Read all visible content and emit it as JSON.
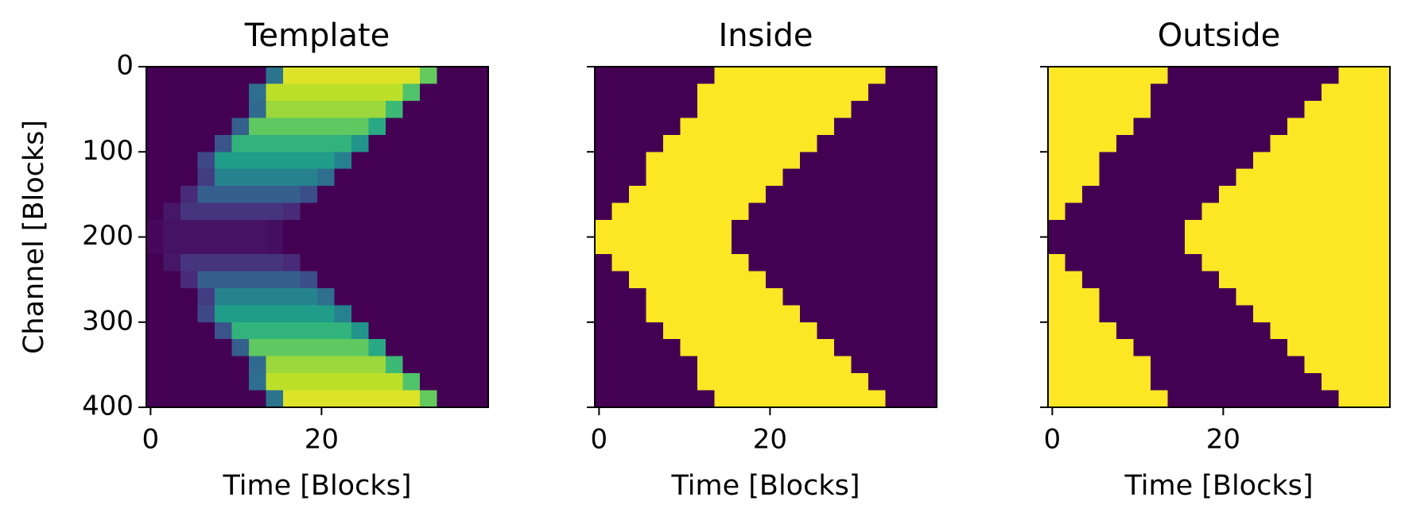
{
  "chart_data": [
    {
      "type": "heatmap",
      "title": "Template",
      "xlabel": "Time [Blocks]",
      "ylabel": "Channel [Blocks]",
      "xlim": [
        -0.5,
        39.5
      ],
      "ylim": [
        400,
        0
      ],
      "xticks": [
        0,
        20
      ],
      "yticks": [
        0,
        100,
        200,
        300,
        400
      ],
      "ytick_labels": true,
      "cmap": "viridis",
      "clim": [
        0,
        1
      ],
      "z": [
        [
          0,
          0,
          0,
          0,
          0,
          0,
          0,
          0.38,
          0.95,
          0.95,
          0.95,
          0.95,
          0.95,
          0.95,
          0.95,
          0.95,
          0.76,
          0,
          0,
          0
        ],
        [
          0,
          0,
          0,
          0,
          0,
          0,
          0.36,
          0.9,
          0.9,
          0.9,
          0.9,
          0.9,
          0.9,
          0.9,
          0.9,
          0.72,
          0,
          0,
          0,
          0
        ],
        [
          0,
          0,
          0,
          0,
          0,
          0,
          0.34,
          0.85,
          0.85,
          0.85,
          0.85,
          0.85,
          0.85,
          0.85,
          0.68,
          0,
          0,
          0,
          0,
          0
        ],
        [
          0,
          0,
          0,
          0,
          0,
          0.3,
          0.75,
          0.75,
          0.75,
          0.75,
          0.75,
          0.75,
          0.75,
          0.6,
          0,
          0,
          0,
          0,
          0,
          0
        ],
        [
          0,
          0,
          0,
          0,
          0.26,
          0.65,
          0.65,
          0.65,
          0.65,
          0.65,
          0.65,
          0.65,
          0.52,
          0,
          0,
          0,
          0,
          0,
          0,
          0
        ],
        [
          0,
          0,
          0,
          0.22,
          0.55,
          0.55,
          0.55,
          0.55,
          0.55,
          0.55,
          0.55,
          0.44,
          0,
          0,
          0,
          0,
          0,
          0,
          0,
          0
        ],
        [
          0,
          0,
          0,
          0.18,
          0.45,
          0.45,
          0.45,
          0.45,
          0.45,
          0.45,
          0.36,
          0,
          0,
          0,
          0,
          0,
          0,
          0,
          0,
          0
        ],
        [
          0,
          0,
          0.12,
          0.3,
          0.3,
          0.3,
          0.3,
          0.3,
          0.3,
          0.24,
          0,
          0,
          0,
          0,
          0,
          0,
          0,
          0,
          0,
          0
        ],
        [
          0,
          0.06,
          0.15,
          0.15,
          0.15,
          0.15,
          0.15,
          0.15,
          0.12,
          0,
          0,
          0,
          0,
          0,
          0,
          0,
          0,
          0,
          0,
          0
        ],
        [
          0.02,
          0.05,
          0.05,
          0.05,
          0.05,
          0.05,
          0.05,
          0.04,
          0,
          0,
          0,
          0,
          0,
          0,
          0,
          0,
          0,
          0,
          0,
          0
        ],
        [
          0.02,
          0.05,
          0.05,
          0.05,
          0.05,
          0.05,
          0.05,
          0.04,
          0,
          0,
          0,
          0,
          0,
          0,
          0,
          0,
          0,
          0,
          0,
          0
        ],
        [
          0,
          0.06,
          0.15,
          0.15,
          0.15,
          0.15,
          0.15,
          0.15,
          0.12,
          0,
          0,
          0,
          0,
          0,
          0,
          0,
          0,
          0,
          0,
          0
        ],
        [
          0,
          0,
          0.12,
          0.3,
          0.3,
          0.3,
          0.3,
          0.3,
          0.3,
          0.24,
          0,
          0,
          0,
          0,
          0,
          0,
          0,
          0,
          0,
          0
        ],
        [
          0,
          0,
          0,
          0.18,
          0.45,
          0.45,
          0.45,
          0.45,
          0.45,
          0.45,
          0.36,
          0,
          0,
          0,
          0,
          0,
          0,
          0,
          0,
          0
        ],
        [
          0,
          0,
          0,
          0.22,
          0.55,
          0.55,
          0.55,
          0.55,
          0.55,
          0.55,
          0.55,
          0.44,
          0,
          0,
          0,
          0,
          0,
          0,
          0,
          0
        ],
        [
          0,
          0,
          0,
          0,
          0.26,
          0.65,
          0.65,
          0.65,
          0.65,
          0.65,
          0.65,
          0.65,
          0.52,
          0,
          0,
          0,
          0,
          0,
          0,
          0
        ],
        [
          0,
          0,
          0,
          0,
          0,
          0.3,
          0.75,
          0.75,
          0.75,
          0.75,
          0.75,
          0.75,
          0.75,
          0.6,
          0,
          0,
          0,
          0,
          0,
          0
        ],
        [
          0,
          0,
          0,
          0,
          0,
          0,
          0.34,
          0.85,
          0.85,
          0.85,
          0.85,
          0.85,
          0.85,
          0.85,
          0.68,
          0,
          0,
          0,
          0,
          0
        ],
        [
          0,
          0,
          0,
          0,
          0,
          0,
          0.36,
          0.9,
          0.9,
          0.9,
          0.9,
          0.9,
          0.9,
          0.9,
          0.9,
          0.72,
          0,
          0,
          0,
          0
        ],
        [
          0,
          0,
          0,
          0,
          0,
          0,
          0,
          0.38,
          0.95,
          0.95,
          0.95,
          0.95,
          0.95,
          0.95,
          0.95,
          0.95,
          0.76,
          0,
          0,
          0
        ]
      ]
    },
    {
      "type": "heatmap",
      "title": "Inside",
      "xlabel": "Time [Blocks]",
      "xlim": [
        -0.5,
        39.5
      ],
      "ylim": [
        400,
        0
      ],
      "xticks": [
        0,
        20
      ],
      "yticks": [
        0,
        100,
        200,
        300,
        400
      ],
      "ytick_labels": false,
      "cmap": "viridis",
      "clim": [
        0,
        1
      ],
      "z": [
        [
          0,
          0,
          0,
          0,
          0,
          0,
          0,
          1,
          1,
          1,
          1,
          1,
          1,
          1,
          1,
          1,
          1,
          0,
          0,
          0
        ],
        [
          0,
          0,
          0,
          0,
          0,
          0,
          1,
          1,
          1,
          1,
          1,
          1,
          1,
          1,
          1,
          1,
          0,
          0,
          0,
          0
        ],
        [
          0,
          0,
          0,
          0,
          0,
          0,
          1,
          1,
          1,
          1,
          1,
          1,
          1,
          1,
          1,
          0,
          0,
          0,
          0,
          0
        ],
        [
          0,
          0,
          0,
          0,
          0,
          1,
          1,
          1,
          1,
          1,
          1,
          1,
          1,
          1,
          0,
          0,
          0,
          0,
          0,
          0
        ],
        [
          0,
          0,
          0,
          0,
          1,
          1,
          1,
          1,
          1,
          1,
          1,
          1,
          1,
          0,
          0,
          0,
          0,
          0,
          0,
          0
        ],
        [
          0,
          0,
          0,
          1,
          1,
          1,
          1,
          1,
          1,
          1,
          1,
          1,
          0,
          0,
          0,
          0,
          0,
          0,
          0,
          0
        ],
        [
          0,
          0,
          0,
          1,
          1,
          1,
          1,
          1,
          1,
          1,
          1,
          0,
          0,
          0,
          0,
          0,
          0,
          0,
          0,
          0
        ],
        [
          0,
          0,
          1,
          1,
          1,
          1,
          1,
          1,
          1,
          1,
          0,
          0,
          0,
          0,
          0,
          0,
          0,
          0,
          0,
          0
        ],
        [
          0,
          1,
          1,
          1,
          1,
          1,
          1,
          1,
          1,
          0,
          0,
          0,
          0,
          0,
          0,
          0,
          0,
          0,
          0,
          0
        ],
        [
          1,
          1,
          1,
          1,
          1,
          1,
          1,
          1,
          0,
          0,
          0,
          0,
          0,
          0,
          0,
          0,
          0,
          0,
          0,
          0
        ],
        [
          1,
          1,
          1,
          1,
          1,
          1,
          1,
          1,
          0,
          0,
          0,
          0,
          0,
          0,
          0,
          0,
          0,
          0,
          0,
          0
        ],
        [
          0,
          1,
          1,
          1,
          1,
          1,
          1,
          1,
          1,
          0,
          0,
          0,
          0,
          0,
          0,
          0,
          0,
          0,
          0,
          0
        ],
        [
          0,
          0,
          1,
          1,
          1,
          1,
          1,
          1,
          1,
          1,
          0,
          0,
          0,
          0,
          0,
          0,
          0,
          0,
          0,
          0
        ],
        [
          0,
          0,
          0,
          1,
          1,
          1,
          1,
          1,
          1,
          1,
          1,
          0,
          0,
          0,
          0,
          0,
          0,
          0,
          0,
          0
        ],
        [
          0,
          0,
          0,
          1,
          1,
          1,
          1,
          1,
          1,
          1,
          1,
          1,
          0,
          0,
          0,
          0,
          0,
          0,
          0,
          0
        ],
        [
          0,
          0,
          0,
          0,
          1,
          1,
          1,
          1,
          1,
          1,
          1,
          1,
          1,
          0,
          0,
          0,
          0,
          0,
          0,
          0
        ],
        [
          0,
          0,
          0,
          0,
          0,
          1,
          1,
          1,
          1,
          1,
          1,
          1,
          1,
          1,
          0,
          0,
          0,
          0,
          0,
          0
        ],
        [
          0,
          0,
          0,
          0,
          0,
          0,
          1,
          1,
          1,
          1,
          1,
          1,
          1,
          1,
          1,
          0,
          0,
          0,
          0,
          0
        ],
        [
          0,
          0,
          0,
          0,
          0,
          0,
          1,
          1,
          1,
          1,
          1,
          1,
          1,
          1,
          1,
          1,
          0,
          0,
          0,
          0
        ],
        [
          0,
          0,
          0,
          0,
          0,
          0,
          0,
          1,
          1,
          1,
          1,
          1,
          1,
          1,
          1,
          1,
          1,
          0,
          0,
          0
        ]
      ]
    },
    {
      "type": "heatmap",
      "title": "Outside",
      "xlabel": "Time [Blocks]",
      "xlim": [
        -0.5,
        39.5
      ],
      "ylim": [
        400,
        0
      ],
      "xticks": [
        0,
        20
      ],
      "yticks": [
        0,
        100,
        200,
        300,
        400
      ],
      "ytick_labels": false,
      "cmap": "viridis",
      "clim": [
        0,
        1
      ],
      "z": [
        [
          1,
          1,
          1,
          1,
          1,
          1,
          1,
          0,
          0,
          0,
          0,
          0,
          0,
          0,
          0,
          0,
          0,
          1,
          1,
          1
        ],
        [
          1,
          1,
          1,
          1,
          1,
          1,
          0,
          0,
          0,
          0,
          0,
          0,
          0,
          0,
          0,
          0,
          1,
          1,
          1,
          1
        ],
        [
          1,
          1,
          1,
          1,
          1,
          1,
          0,
          0,
          0,
          0,
          0,
          0,
          0,
          0,
          0,
          1,
          1,
          1,
          1,
          1
        ],
        [
          1,
          1,
          1,
          1,
          1,
          0,
          0,
          0,
          0,
          0,
          0,
          0,
          0,
          0,
          1,
          1,
          1,
          1,
          1,
          1
        ],
        [
          1,
          1,
          1,
          1,
          0,
          0,
          0,
          0,
          0,
          0,
          0,
          0,
          0,
          1,
          1,
          1,
          1,
          1,
          1,
          1
        ],
        [
          1,
          1,
          1,
          0,
          0,
          0,
          0,
          0,
          0,
          0,
          0,
          0,
          1,
          1,
          1,
          1,
          1,
          1,
          1,
          1
        ],
        [
          1,
          1,
          1,
          0,
          0,
          0,
          0,
          0,
          0,
          0,
          0,
          1,
          1,
          1,
          1,
          1,
          1,
          1,
          1,
          1
        ],
        [
          1,
          1,
          0,
          0,
          0,
          0,
          0,
          0,
          0,
          0,
          1,
          1,
          1,
          1,
          1,
          1,
          1,
          1,
          1,
          1
        ],
        [
          1,
          0,
          0,
          0,
          0,
          0,
          0,
          0,
          0,
          1,
          1,
          1,
          1,
          1,
          1,
          1,
          1,
          1,
          1,
          1
        ],
        [
          0,
          0,
          0,
          0,
          0,
          0,
          0,
          0,
          1,
          1,
          1,
          1,
          1,
          1,
          1,
          1,
          1,
          1,
          1,
          1
        ],
        [
          0,
          0,
          0,
          0,
          0,
          0,
          0,
          0,
          1,
          1,
          1,
          1,
          1,
          1,
          1,
          1,
          1,
          1,
          1,
          1
        ],
        [
          1,
          0,
          0,
          0,
          0,
          0,
          0,
          0,
          0,
          1,
          1,
          1,
          1,
          1,
          1,
          1,
          1,
          1,
          1,
          1
        ],
        [
          1,
          1,
          0,
          0,
          0,
          0,
          0,
          0,
          0,
          0,
          1,
          1,
          1,
          1,
          1,
          1,
          1,
          1,
          1,
          1
        ],
        [
          1,
          1,
          1,
          0,
          0,
          0,
          0,
          0,
          0,
          0,
          0,
          1,
          1,
          1,
          1,
          1,
          1,
          1,
          1,
          1
        ],
        [
          1,
          1,
          1,
          0,
          0,
          0,
          0,
          0,
          0,
          0,
          0,
          0,
          1,
          1,
          1,
          1,
          1,
          1,
          1,
          1
        ],
        [
          1,
          1,
          1,
          1,
          0,
          0,
          0,
          0,
          0,
          0,
          0,
          0,
          0,
          1,
          1,
          1,
          1,
          1,
          1,
          1
        ],
        [
          1,
          1,
          1,
          1,
          1,
          0,
          0,
          0,
          0,
          0,
          0,
          0,
          0,
          0,
          1,
          1,
          1,
          1,
          1,
          1
        ],
        [
          1,
          1,
          1,
          1,
          1,
          1,
          0,
          0,
          0,
          0,
          0,
          0,
          0,
          0,
          0,
          1,
          1,
          1,
          1,
          1
        ],
        [
          1,
          1,
          1,
          1,
          1,
          1,
          0,
          0,
          0,
          0,
          0,
          0,
          0,
          0,
          0,
          0,
          1,
          1,
          1,
          1
        ],
        [
          1,
          1,
          1,
          1,
          1,
          1,
          1,
          0,
          0,
          0,
          0,
          0,
          0,
          0,
          0,
          0,
          0,
          1,
          1,
          1
        ]
      ]
    }
  ]
}
